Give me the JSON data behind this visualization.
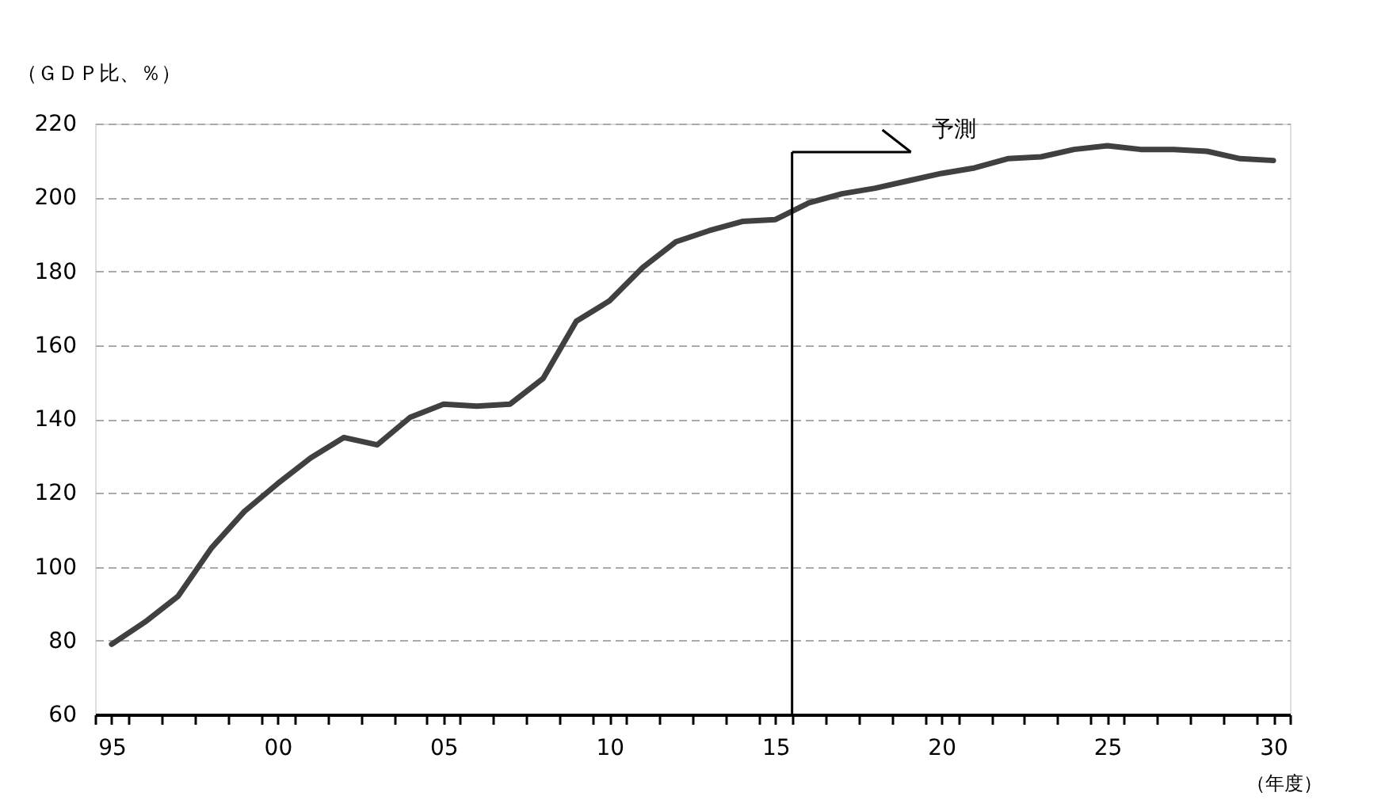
{
  "chart_data": {
    "type": "line",
    "ylabel": "（ＧＤＰ比、％）",
    "xlabel": "（年度）",
    "x": [
      1995,
      1996,
      1997,
      1998,
      1999,
      2000,
      2001,
      2002,
      2003,
      2004,
      2005,
      2006,
      2007,
      2008,
      2009,
      2010,
      2011,
      2012,
      2013,
      2014,
      2015,
      2016,
      2017,
      2018,
      2019,
      2020,
      2021,
      2022,
      2023,
      2024,
      2025,
      2026,
      2027,
      2028,
      2029,
      2030
    ],
    "series": [
      {
        "color": "#404040",
        "values": [
          79,
          85,
          92,
          105,
          115,
          122.5,
          129.5,
          135,
          133,
          140.5,
          144,
          143.5,
          144,
          151,
          166.5,
          172,
          181,
          188,
          191,
          193.5,
          194,
          198.5,
          201,
          202.5,
          204.5,
          206.5,
          208,
          210.5,
          211,
          213,
          214,
          213,
          213,
          212.5,
          210.5,
          210
        ]
      }
    ],
    "xlim": [
      1994.5,
      2030.5
    ],
    "xticks": [
      {
        "value": 1995,
        "label": "95"
      },
      {
        "value": 2000,
        "label": "00"
      },
      {
        "value": 2005,
        "label": "05"
      },
      {
        "value": 2010,
        "label": "10"
      },
      {
        "value": 2015,
        "label": "15"
      },
      {
        "value": 2020,
        "label": "20"
      },
      {
        "value": 2025,
        "label": "25"
      },
      {
        "value": 2030,
        "label": "30"
      },
      {
        "value": 1994.5,
        "label": null
      },
      {
        "value": 1995.5,
        "label": null
      },
      {
        "value": 1996.5,
        "label": null
      },
      {
        "value": 1997.5,
        "label": null
      },
      {
        "value": 1998.5,
        "label": null
      },
      {
        "value": 1999.5,
        "label": null
      },
      {
        "value": 2000.5,
        "label": null
      },
      {
        "value": 2001.5,
        "label": null
      },
      {
        "value": 2002.5,
        "label": null
      },
      {
        "value": 2003.5,
        "label": null
      },
      {
        "value": 2004.5,
        "label": null
      },
      {
        "value": 2005.5,
        "label": null
      },
      {
        "value": 2006.5,
        "label": null
      },
      {
        "value": 2007.5,
        "label": null
      },
      {
        "value": 2008.5,
        "label": null
      },
      {
        "value": 2009.5,
        "label": null
      },
      {
        "value": 2010.5,
        "label": null
      },
      {
        "value": 2011.5,
        "label": null
      },
      {
        "value": 2012.5,
        "label": null
      },
      {
        "value": 2013.5,
        "label": null
      },
      {
        "value": 2014.5,
        "label": null
      },
      {
        "value": 2015.5,
        "label": null
      },
      {
        "value": 2016.5,
        "label": null
      },
      {
        "value": 2017.5,
        "label": null
      },
      {
        "value": 2018.5,
        "label": null
      },
      {
        "value": 2019.5,
        "label": null
      },
      {
        "value": 2020.5,
        "label": null
      },
      {
        "value": 2021.5,
        "label": null
      },
      {
        "value": 2022.5,
        "label": null
      },
      {
        "value": 2023.5,
        "label": null
      },
      {
        "value": 2024.5,
        "label": null
      },
      {
        "value": 2025.5,
        "label": null
      },
      {
        "value": 2026.5,
        "label": null
      },
      {
        "value": 2027.5,
        "label": null
      },
      {
        "value": 2028.5,
        "label": null
      },
      {
        "value": 2029.5,
        "label": null
      },
      {
        "value": 2030.5,
        "label": null
      }
    ],
    "ylim": [
      60,
      220
    ],
    "yticks": [
      60,
      80,
      100,
      120,
      140,
      160,
      180,
      200,
      220
    ],
    "grid": "y",
    "marker": "none",
    "line_style": "solid",
    "ref_lines": [
      {
        "axis": "x",
        "value": 2015.5,
        "label": "予測",
        "color": "#000000"
      }
    ]
  }
}
